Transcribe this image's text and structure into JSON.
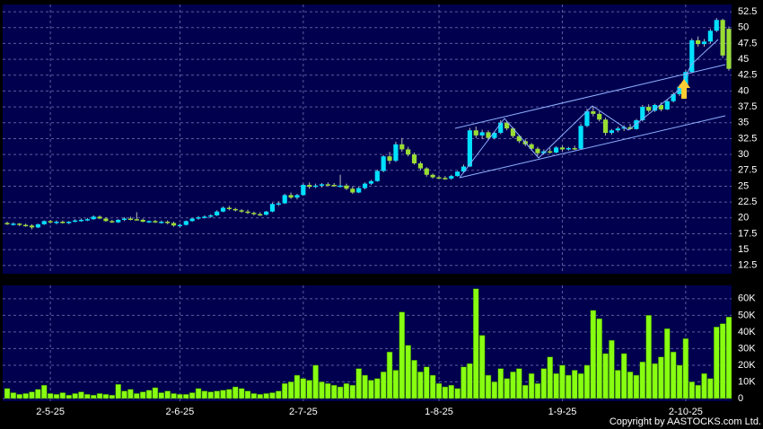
{
  "chart_data": {
    "type": "candlestick",
    "categories": [
      null,
      null,
      null,
      null,
      null,
      null,
      null,
      "2-5-25",
      null,
      null,
      null,
      null,
      null,
      null,
      null,
      null,
      null,
      null,
      null,
      null,
      null,
      null,
      null,
      null,
      null,
      null,
      null,
      null,
      "2-6-25",
      null,
      null,
      null,
      null,
      null,
      null,
      null,
      null,
      null,
      null,
      null,
      null,
      null,
      null,
      null,
      null,
      null,
      null,
      null,
      "2-7-25",
      null,
      null,
      null,
      null,
      null,
      null,
      null,
      null,
      null,
      null,
      null,
      null,
      null,
      null,
      null,
      null,
      null,
      null,
      null,
      null,
      null,
      "1-8-25",
      null,
      null,
      null,
      null,
      null,
      null,
      null,
      null,
      null,
      null,
      null,
      null,
      null,
      null,
      null,
      null,
      null,
      null,
      null,
      "1-9-25",
      null,
      null,
      null,
      null,
      null,
      null,
      null,
      null,
      null,
      null,
      null,
      null,
      null,
      null,
      null,
      null,
      null,
      null,
      null,
      "2-10-25",
      null,
      null,
      null,
      null,
      null,
      null,
      null
    ],
    "ohlc": [
      [
        19.2,
        19.4,
        18.9,
        19.0
      ],
      [
        19.0,
        19.3,
        18.8,
        19.1
      ],
      [
        19.1,
        19.2,
        18.7,
        18.9
      ],
      [
        18.9,
        19.1,
        18.6,
        18.8
      ],
      [
        18.8,
        19.0,
        18.2,
        18.5
      ],
      [
        18.5,
        19.1,
        18.4,
        19.0
      ],
      [
        19.0,
        19.6,
        18.9,
        19.5
      ],
      [
        19.5,
        19.7,
        19.1,
        19.3
      ],
      [
        19.3,
        19.6,
        19.0,
        19.4
      ],
      [
        19.4,
        19.6,
        19.1,
        19.2
      ],
      [
        19.2,
        19.5,
        19.0,
        19.4
      ],
      [
        19.4,
        19.8,
        19.3,
        19.6
      ],
      [
        19.6,
        19.9,
        19.4,
        19.7
      ],
      [
        19.7,
        20.0,
        19.5,
        19.8
      ],
      [
        19.8,
        20.4,
        19.7,
        20.2
      ],
      [
        20.2,
        20.4,
        19.8,
        19.9
      ],
      [
        19.9,
        20.1,
        19.4,
        19.5
      ],
      [
        19.5,
        19.7,
        19.2,
        19.3
      ],
      [
        19.3,
        19.8,
        19.2,
        19.7
      ],
      [
        19.7,
        20.1,
        19.5,
        19.9
      ],
      [
        19.9,
        20.2,
        19.6,
        19.8
      ],
      [
        19.8,
        20.9,
        19.6,
        19.7
      ],
      [
        19.7,
        19.9,
        19.3,
        19.4
      ],
      [
        19.4,
        19.6,
        19.2,
        19.5
      ],
      [
        19.5,
        19.7,
        19.2,
        19.3
      ],
      [
        19.3,
        19.6,
        19.1,
        19.4
      ],
      [
        19.4,
        19.6,
        19.0,
        19.2
      ],
      [
        19.2,
        19.4,
        18.6,
        18.8
      ],
      [
        18.8,
        19.1,
        18.5,
        18.9
      ],
      [
        18.9,
        19.6,
        18.8,
        19.5
      ],
      [
        19.5,
        20.0,
        19.4,
        19.9
      ],
      [
        19.9,
        20.3,
        19.7,
        20.1
      ],
      [
        20.1,
        20.4,
        19.9,
        20.2
      ],
      [
        20.2,
        20.6,
        20.0,
        20.4
      ],
      [
        20.4,
        21.2,
        20.3,
        21.0
      ],
      [
        21.0,
        21.8,
        20.9,
        21.6
      ],
      [
        21.6,
        21.9,
        21.2,
        21.4
      ],
      [
        21.4,
        21.6,
        21.0,
        21.2
      ],
      [
        21.2,
        21.4,
        20.8,
        21.0
      ],
      [
        21.0,
        21.3,
        20.6,
        20.8
      ],
      [
        20.8,
        21.0,
        20.4,
        20.6
      ],
      [
        20.6,
        20.9,
        20.3,
        20.5
      ],
      [
        20.5,
        21.1,
        20.4,
        21.0
      ],
      [
        21.0,
        22.4,
        20.9,
        22.2
      ],
      [
        22.2,
        22.6,
        21.9,
        22.3
      ],
      [
        22.3,
        23.8,
        22.2,
        23.6
      ],
      [
        23.6,
        24.0,
        23.0,
        23.2
      ],
      [
        23.2,
        23.8,
        22.9,
        23.6
      ],
      [
        23.6,
        25.4,
        23.5,
        25.2
      ],
      [
        25.2,
        25.6,
        24.6,
        24.9
      ],
      [
        24.9,
        25.4,
        24.7,
        25.1
      ],
      [
        25.1,
        25.5,
        24.8,
        25.3
      ],
      [
        25.3,
        25.6,
        25.0,
        25.2
      ],
      [
        25.2,
        25.5,
        24.9,
        25.0
      ],
      [
        25.0,
        26.8,
        24.8,
        25.1
      ],
      [
        25.1,
        25.4,
        24.4,
        24.6
      ],
      [
        24.6,
        25.0,
        23.8,
        24.0
      ],
      [
        24.0,
        24.9,
        23.9,
        24.7
      ],
      [
        24.7,
        25.6,
        24.5,
        25.4
      ],
      [
        25.4,
        26.0,
        25.2,
        25.8
      ],
      [
        25.8,
        27.6,
        25.7,
        27.4
      ],
      [
        27.4,
        29.9,
        27.2,
        29.7
      ],
      [
        29.7,
        30.4,
        28.5,
        29.0
      ],
      [
        29.0,
        32.0,
        28.8,
        31.6
      ],
      [
        31.6,
        32.6,
        30.4,
        30.8
      ],
      [
        30.8,
        31.2,
        29.7,
        30.0
      ],
      [
        30.0,
        30.3,
        28.4,
        28.6
      ],
      [
        28.6,
        28.9,
        27.5,
        27.8
      ],
      [
        27.8,
        28.0,
        26.5,
        26.8
      ],
      [
        26.8,
        27.0,
        26.2,
        26.4
      ],
      [
        26.4,
        26.7,
        26.1,
        26.3
      ],
      [
        26.3,
        26.6,
        26.0,
        26.2
      ],
      [
        26.2,
        26.8,
        26.0,
        26.6
      ],
      [
        26.6,
        27.4,
        26.5,
        27.3
      ],
      [
        27.3,
        28.4,
        27.1,
        28.1
      ],
      [
        28.1,
        34.2,
        28.0,
        33.8
      ],
      [
        33.8,
        34.4,
        32.6,
        33.0
      ],
      [
        33.0,
        33.9,
        32.4,
        33.5
      ],
      [
        33.5,
        33.8,
        32.2,
        32.6
      ],
      [
        32.6,
        33.6,
        32.4,
        33.4
      ],
      [
        33.4,
        35.4,
        33.2,
        35.0
      ],
      [
        35.0,
        35.2,
        33.8,
        34.1
      ],
      [
        34.1,
        34.3,
        32.6,
        32.9
      ],
      [
        32.9,
        33.1,
        31.8,
        32.1
      ],
      [
        32.1,
        32.4,
        31.3,
        31.6
      ],
      [
        31.6,
        31.8,
        30.6,
        30.9
      ],
      [
        30.9,
        31.2,
        29.8,
        30.2
      ],
      [
        30.2,
        30.8,
        30.0,
        30.5
      ],
      [
        30.5,
        31.0,
        30.1,
        30.3
      ],
      [
        30.3,
        31.3,
        30.2,
        31.1
      ],
      [
        31.1,
        31.4,
        30.5,
        30.8
      ],
      [
        30.8,
        31.2,
        30.6,
        31.0
      ],
      [
        31.0,
        31.4,
        30.7,
        30.9
      ],
      [
        30.9,
        34.8,
        30.8,
        34.5
      ],
      [
        34.5,
        37.2,
        34.3,
        36.8
      ],
      [
        36.8,
        37.6,
        36.0,
        36.4
      ],
      [
        36.4,
        36.8,
        35.2,
        35.5
      ],
      [
        35.5,
        35.8,
        33.0,
        33.4
      ],
      [
        33.4,
        34.0,
        33.1,
        33.8
      ],
      [
        33.8,
        34.4,
        33.5,
        34.1
      ],
      [
        34.1,
        34.6,
        33.7,
        34.3
      ],
      [
        34.3,
        34.8,
        33.9,
        34.0
      ],
      [
        34.0,
        35.6,
        33.9,
        35.4
      ],
      [
        35.4,
        37.8,
        35.2,
        37.5
      ],
      [
        37.5,
        37.9,
        36.6,
        36.9
      ],
      [
        36.9,
        38.0,
        36.7,
        37.8
      ],
      [
        37.8,
        38.2,
        36.8,
        37.1
      ],
      [
        37.1,
        38.6,
        37.0,
        38.4
      ],
      [
        38.4,
        39.8,
        38.2,
        39.5
      ],
      [
        39.5,
        41.0,
        39.2,
        40.7
      ],
      [
        40.7,
        43.3,
        40.5,
        43.0
      ],
      [
        43.0,
        48.3,
        42.8,
        48.0
      ],
      [
        48.0,
        48.6,
        47.0,
        47.4
      ],
      [
        47.4,
        48.2,
        47.0,
        47.8
      ],
      [
        47.8,
        49.8,
        47.5,
        49.5
      ],
      [
        49.5,
        51.5,
        49.3,
        51.2
      ],
      [
        51.2,
        51.4,
        45.2,
        45.6
      ],
      [
        49.8,
        50.2,
        43.2,
        43.5
      ]
    ],
    "up_color": "#00e0ff",
    "down_color": "#99dd33",
    "ylim": [
      11.2,
      53.5
    ],
    "yticks": [
      52.5,
      50,
      47.5,
      45,
      42.5,
      40,
      37.5,
      35,
      32.5,
      30,
      27.5,
      25,
      22.5,
      20,
      17.5,
      15,
      12.5
    ],
    "volume": [
      6000,
      3500,
      2500,
      3000,
      4000,
      5500,
      8000,
      3000,
      2500,
      3500,
      2000,
      3000,
      4000,
      2500,
      2000,
      3000,
      2500,
      2000,
      8500,
      4500,
      5500,
      3000,
      4000,
      5000,
      6500,
      3500,
      4500,
      3000,
      2500,
      2500,
      3500,
      6000,
      4500,
      4000,
      4500,
      5000,
      5500,
      7000,
      6000,
      4500,
      3000,
      2500,
      3000,
      3500,
      4500,
      9000,
      10000,
      14000,
      12000,
      11000,
      20000,
      10000,
      9000,
      8000,
      7000,
      9000,
      8000,
      18000,
      14000,
      11000,
      12000,
      16000,
      28000,
      17000,
      52000,
      32000,
      23000,
      16000,
      19000,
      14000,
      9000,
      7000,
      8000,
      6000,
      19000,
      21000,
      66000,
      38000,
      14000,
      10000,
      18000,
      12000,
      16000,
      18000,
      8000,
      15000,
      9000,
      18000,
      25000,
      15000,
      20000,
      14000,
      17000,
      15000,
      20000,
      53000,
      48000,
      27000,
      35000,
      17000,
      27000,
      16000,
      14000,
      22000,
      50000,
      21000,
      25000,
      42000,
      28000,
      20000,
      36000,
      10000,
      8000,
      15000,
      12000,
      43000,
      45000,
      49000
    ],
    "volume_color": "#88ff11",
    "volume_ylim": [
      0,
      68000
    ],
    "volume_yticks": [
      {
        "value": 60000,
        "label": "60K"
      },
      {
        "value": 50000,
        "label": "50K"
      },
      {
        "value": 40000,
        "label": "40K"
      },
      {
        "value": 30000,
        "label": "30K"
      },
      {
        "value": 20000,
        "label": "20K"
      },
      {
        "value": 10000,
        "label": "10K"
      },
      0
    ],
    "grid": true,
    "copyright": "Copyright by AASTOCKS.com Ltd."
  }
}
